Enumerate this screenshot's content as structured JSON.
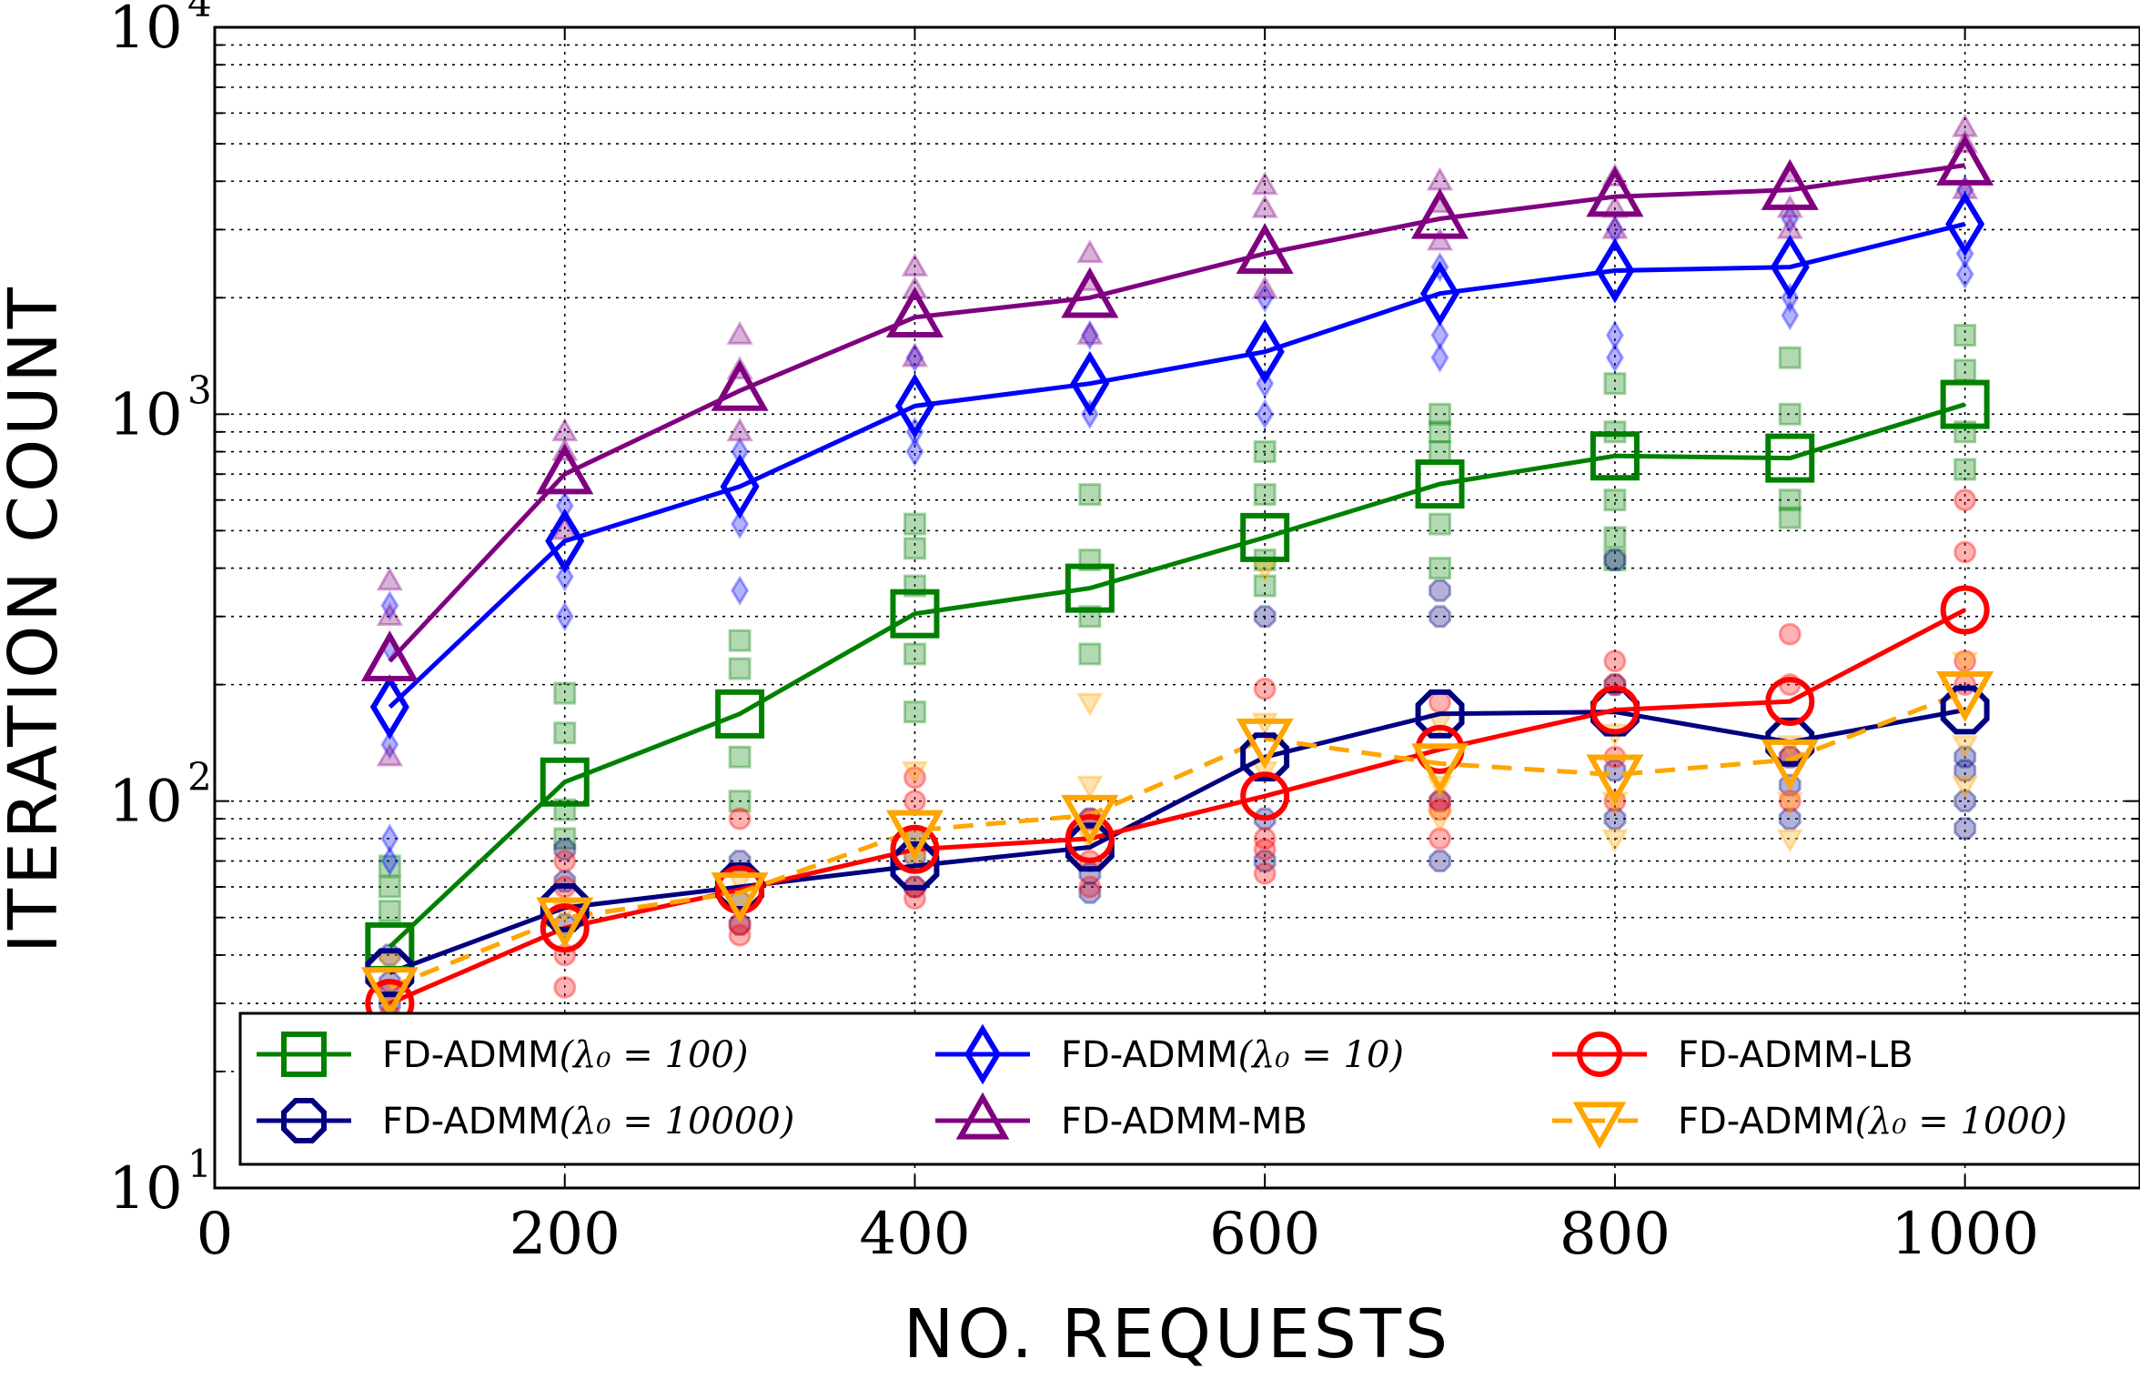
{
  "chart_data": {
    "type": "line",
    "title": "",
    "xlabel": "NO. REQUESTS",
    "ylabel": "ITERATION COUNT",
    "xlim": [
      0,
      1100
    ],
    "ylim": [
      10,
      10000
    ],
    "yscale": "log",
    "grid": true,
    "x": [
      100,
      200,
      300,
      400,
      500,
      600,
      700,
      800,
      900,
      1000
    ],
    "x_ticks": [
      0,
      200,
      400,
      600,
      800,
      1000
    ],
    "x_tick_labels": [
      "0",
      "200",
      "400",
      "600",
      "800",
      "1000"
    ],
    "y_ticks": [
      10,
      100,
      1000,
      10000
    ],
    "y_tick_labels": [
      {
        "base": "10",
        "exp": "1"
      },
      {
        "base": "10",
        "exp": "2"
      },
      {
        "base": "10",
        "exp": "3"
      },
      {
        "base": "10",
        "exp": "4"
      }
    ],
    "legend_position": "bottom",
    "series": [
      {
        "name": "FD-ADMM(λ₀ = 100)",
        "label_prefix": "FD-ADMM",
        "label_math": "(λ₀ = 100)",
        "color": "#008000",
        "marker": "square",
        "dashed": false,
        "values": [
          42,
          112,
          168,
          305,
          355,
          480,
          660,
          780,
          770,
          1060
        ],
        "scatter": [
          [
            60,
            68,
            52
          ],
          [
            150,
            190,
            80,
            95
          ],
          [
            220,
            260,
            130,
            100
          ],
          [
            520,
            450,
            360,
            170,
            240
          ],
          [
            420,
            620,
            300,
            240
          ],
          [
            800,
            620,
            420,
            360
          ],
          [
            1000,
            900,
            800,
            520,
            400
          ],
          [
            1200,
            900,
            600,
            480,
            420
          ],
          [
            1400,
            1000,
            600,
            540
          ],
          [
            1600,
            1300,
            900,
            720
          ]
        ]
      },
      {
        "name": "FD-ADMM(λ₀ = 10000)",
        "label_prefix": "FD-ADMM",
        "label_math": "(λ₀ = 10000)",
        "color": "#000080",
        "marker": "octagon",
        "dashed": false,
        "values": [
          36,
          53,
          60,
          68,
          76,
          130,
          168,
          170,
          142,
          172
        ],
        "scatter": [
          [
            30,
            40,
            34
          ],
          [
            62,
            75,
            48
          ],
          [
            55,
            48,
            70
          ],
          [
            60,
            72,
            80
          ],
          [
            58,
            65,
            90
          ],
          [
            300,
            90,
            70
          ],
          [
            350,
            300,
            70,
            100
          ],
          [
            420,
            200,
            90,
            120
          ],
          [
            110,
            90,
            130
          ],
          [
            85,
            100,
            130,
            120
          ]
        ]
      },
      {
        "name": "FD-ADMM(λ₀ = 10)",
        "label_prefix": "FD-ADMM",
        "label_math": "(λ₀ = 10)",
        "color": "#0000ff",
        "marker": "diamond",
        "dashed": false,
        "values": [
          175,
          470,
          650,
          1050,
          1200,
          1450,
          2050,
          2350,
          2400,
          3100
        ],
        "scatter": [
          [
            320,
            250,
            140,
            80,
            70
          ],
          [
            580,
            380,
            300
          ],
          [
            800,
            520,
            350
          ],
          [
            1400,
            900,
            800
          ],
          [
            1600,
            1000
          ],
          [
            2000,
            1200,
            1000
          ],
          [
            2400,
            1600,
            1400
          ],
          [
            3000,
            1600,
            1400
          ],
          [
            3200,
            2000,
            1800
          ],
          [
            3800,
            2600,
            2300
          ]
        ]
      },
      {
        "name": "FD-ADMM-MB",
        "label_prefix": "FD-ADMM-MB",
        "label_math": "",
        "color": "#800080",
        "marker": "triangle-up",
        "dashed": false,
        "values": [
          230,
          700,
          1150,
          1780,
          2000,
          2600,
          3200,
          3650,
          3800,
          4400
        ],
        "scatter": [
          [
            370,
            300,
            130
          ],
          [
            900,
            800,
            500
          ],
          [
            1600,
            1300,
            900
          ],
          [
            2400,
            2100,
            1400
          ],
          [
            2600,
            2200,
            1600
          ],
          [
            3900,
            3400,
            2100
          ],
          [
            4000,
            3500,
            2800
          ],
          [
            4100,
            3400,
            3000
          ],
          [
            4200,
            3400,
            3000
          ],
          [
            5500,
            5000,
            3800
          ]
        ]
      },
      {
        "name": "FD-ADMM-LB",
        "label_prefix": "FD-ADMM-LB",
        "label_math": "",
        "color": "#ff0000",
        "marker": "circle",
        "dashed": false,
        "values": [
          30,
          47,
          59,
          75,
          80,
          103,
          136,
          172,
          181,
          312
        ],
        "scatter": [
          [
            28,
            32,
            26
          ],
          [
            33,
            60,
            70,
            40
          ],
          [
            90,
            48,
            45
          ],
          [
            115,
            100,
            60,
            56
          ],
          [
            90,
            70,
            60
          ],
          [
            195,
            80,
            75,
            65
          ],
          [
            180,
            100,
            95,
            80
          ],
          [
            230,
            200,
            130,
            100
          ],
          [
            270,
            200,
            130,
            100
          ],
          [
            600,
            440,
            230,
            200
          ]
        ]
      },
      {
        "name": "FD-ADMM(λ₀ = 1000)",
        "label_prefix": "FD-ADMM",
        "label_math": "(λ₀ = 1000)",
        "color": "#ffa500",
        "marker": "triangle-down",
        "dashed": true,
        "values": [
          33,
          50,
          58,
          84,
          92,
          145,
          125,
          117,
          128,
          192
        ],
        "scatter": [
          [
            30,
            38
          ],
          [
            52,
            45
          ],
          [
            62,
            55
          ],
          [
            120,
            80,
            70
          ],
          [
            180,
            110,
            80
          ],
          [
            400,
            160,
            120
          ],
          [
            160,
            110,
            90
          ],
          [
            150,
            100,
            80
          ],
          [
            140,
            100,
            80
          ],
          [
            230,
            140,
            110
          ]
        ]
      }
    ]
  }
}
